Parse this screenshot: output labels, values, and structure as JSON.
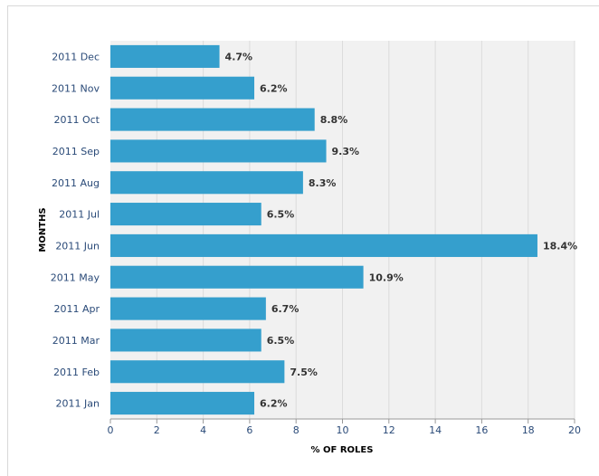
{
  "chart_data": {
    "type": "bar",
    "orientation": "horizontal",
    "categories": [
      "2011 Dec",
      "2011 Nov",
      "2011 Oct",
      "2011 Sep",
      "2011 Aug",
      "2011 Jul",
      "2011 Jun",
      "2011 May",
      "2011 Apr",
      "2011 Mar",
      "2011 Feb",
      "2011 Jan"
    ],
    "values": [
      4.7,
      6.2,
      8.8,
      9.3,
      8.3,
      6.5,
      18.4,
      10.9,
      6.7,
      6.5,
      7.5,
      6.2
    ],
    "value_labels": [
      "4.7%",
      "6.2%",
      "8.8%",
      "9.3%",
      "8.3%",
      "6.5%",
      "18.4%",
      "10.9%",
      "6.7%",
      "6.5%",
      "7.5%",
      "6.2%"
    ],
    "xlabel": "% OF ROLES",
    "ylabel": "MONTHS",
    "xlim": [
      0,
      20
    ],
    "xticks": [
      "0",
      "2",
      "4",
      "6",
      "8",
      "10",
      "12",
      "14",
      "16",
      "18",
      "20"
    ],
    "grid": true,
    "colors": {
      "bar": "#359fcd",
      "plot_bg": "#f1f1f1",
      "grid": "#dcdcdc"
    }
  }
}
